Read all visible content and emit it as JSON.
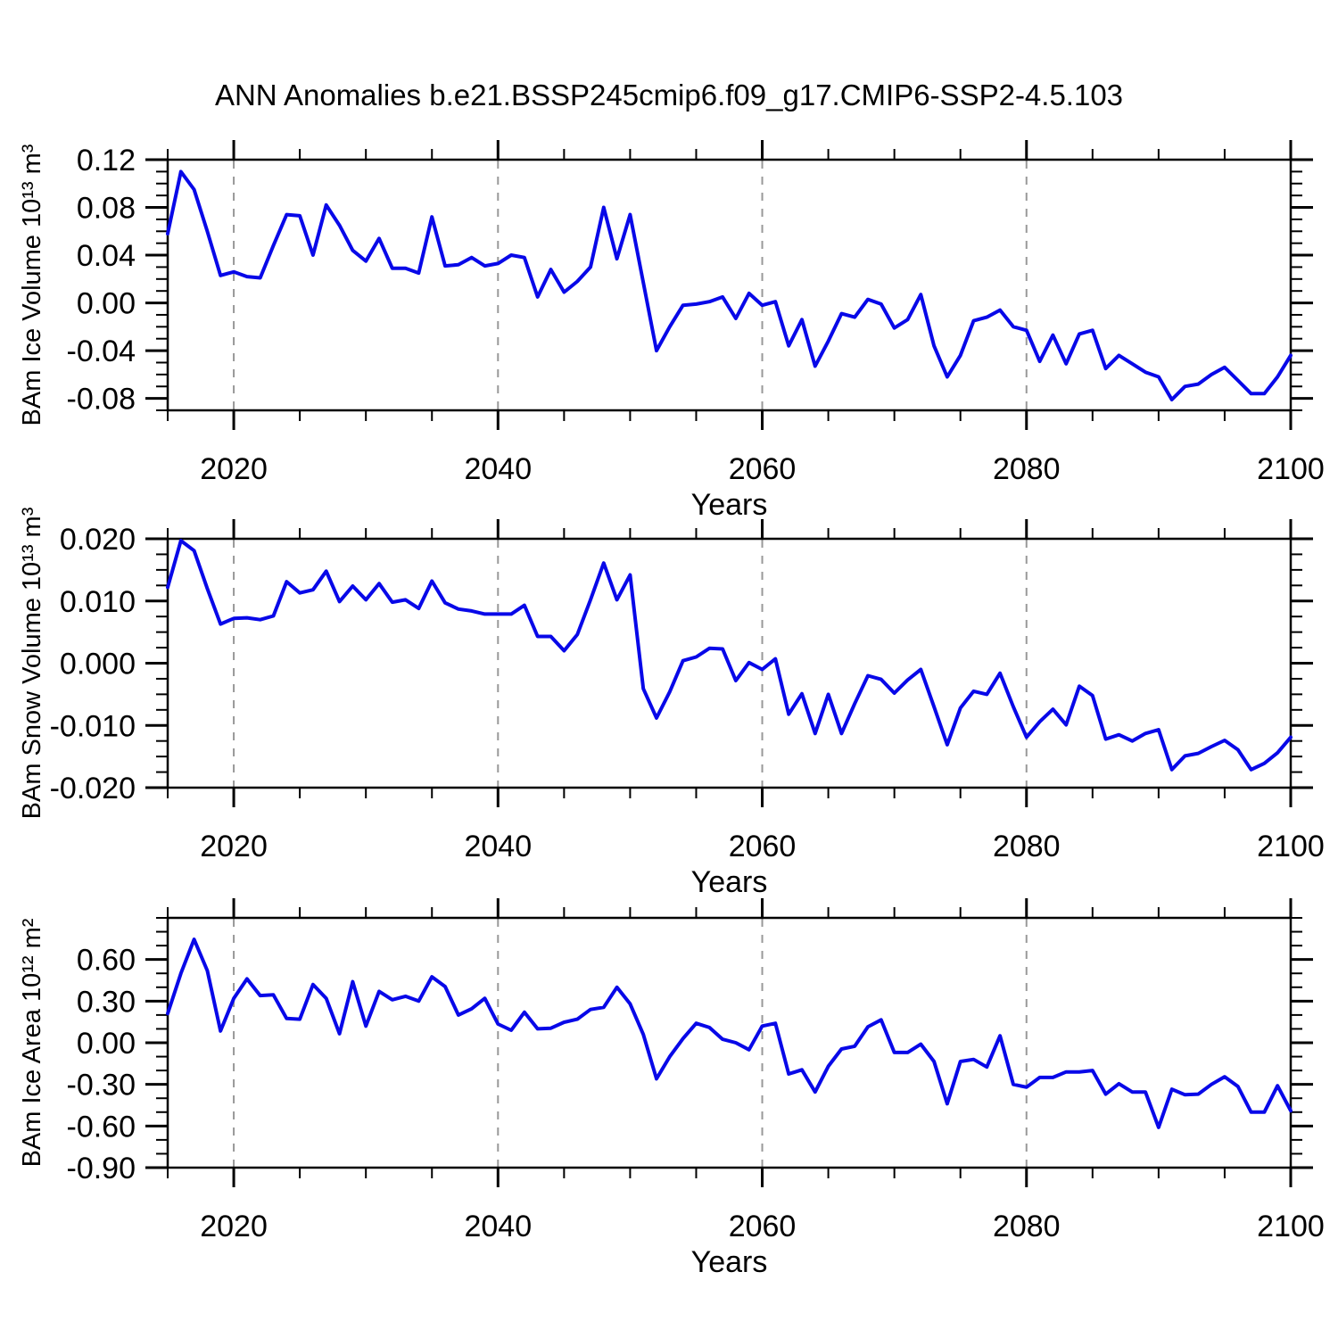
{
  "title": "ANN Anomalies b.e21.BSSP245cmip6.f09_g17.CMIP6-SSP2-4.5.103",
  "styles": {
    "line_color": "#0808E8",
    "grid_color": "#999999",
    "frame_color": "#000000",
    "text_color": "#000000"
  },
  "chart_data": [
    {
      "name": "bam-ice-volume",
      "type": "line",
      "ylabel": "BAm Ice Volume 10¹³ m³",
      "xlabel": "Years",
      "x_start": 2015,
      "x_end": 2100,
      "x_step": 1,
      "xticks": [
        2020,
        2040,
        2060,
        2080,
        2100
      ],
      "x_minor_step": 5,
      "grid_x": [
        2020,
        2040,
        2060,
        2080
      ],
      "ylim": [
        -0.09,
        0.12
      ],
      "yticks": [
        0.12,
        0.08,
        0.04,
        0,
        -0.04,
        -0.08
      ],
      "y_minor_step": 0.01,
      "y_decimals": 2,
      "legend": "none",
      "grid": "dashed-vertical",
      "values": [
        0.058,
        0.11,
        0.095,
        0.06,
        0.023,
        0.026,
        0.022,
        0.021,
        0.048,
        0.074,
        0.073,
        0.04,
        0.082,
        0.065,
        0.044,
        0.035,
        0.054,
        0.029,
        0.029,
        0.025,
        0.072,
        0.031,
        0.032,
        0.038,
        0.031,
        0.033,
        0.04,
        0.038,
        0.005,
        0.028,
        0.009,
        0.018,
        0.03,
        0.08,
        0.037,
        0.074,
        0.017,
        -0.04,
        -0.02,
        -0.002,
        -0.001,
        0.001,
        0.005,
        -0.013,
        0.008,
        -0.002,
        0.001,
        -0.036,
        -0.014,
        -0.053,
        -0.032,
        -0.009,
        -0.012,
        0.003,
        -0.001,
        -0.021,
        -0.014,
        0.007,
        -0.036,
        -0.062,
        -0.044,
        -0.015,
        -0.012,
        -0.006,
        -0.02,
        -0.023,
        -0.049,
        -0.027,
        -0.051,
        -0.026,
        -0.023,
        -0.055,
        -0.044,
        -0.051,
        -0.058,
        -0.062,
        -0.081,
        -0.07,
        -0.068,
        -0.06,
        -0.054,
        -0.065,
        -0.076,
        -0.076,
        -0.062,
        -0.044
      ]
    },
    {
      "name": "bam-snow-volume",
      "type": "line",
      "ylabel": "BAm Snow Volume 10¹³ m³",
      "xlabel": "Years",
      "x_start": 2015,
      "x_end": 2100,
      "x_step": 1,
      "xticks": [
        2020,
        2040,
        2060,
        2080,
        2100
      ],
      "x_minor_step": 5,
      "grid_x": [
        2020,
        2040,
        2060,
        2080
      ],
      "ylim": [
        -0.02,
        0.02
      ],
      "yticks": [
        0.02,
        0.01,
        0,
        -0.01,
        -0.02
      ],
      "y_minor_step": 0.0025,
      "y_decimals": 3,
      "legend": "none",
      "grid": "dashed-vertical",
      "values": [
        0.0122,
        0.0197,
        0.0181,
        0.012,
        0.0063,
        0.0072,
        0.0073,
        0.007,
        0.0076,
        0.0131,
        0.0113,
        0.0118,
        0.0148,
        0.0099,
        0.0124,
        0.0102,
        0.0128,
        0.0098,
        0.0102,
        0.0088,
        0.0132,
        0.0097,
        0.0087,
        0.0084,
        0.0079,
        0.0079,
        0.0079,
        0.0093,
        0.0043,
        0.0043,
        0.002,
        0.0046,
        0.0102,
        0.0161,
        0.0102,
        0.0142,
        -0.0041,
        -0.0088,
        -0.0046,
        0.0004,
        0.001,
        0.0024,
        0.0023,
        -0.0028,
        0.0001,
        -0.001,
        0.0007,
        -0.0082,
        -0.0049,
        -0.0113,
        -0.005,
        -0.0113,
        -0.0065,
        -0.002,
        -0.0026,
        -0.0048,
        -0.0027,
        -0.001,
        -0.007,
        -0.0131,
        -0.0072,
        -0.0045,
        -0.005,
        -0.0016,
        -0.007,
        -0.0119,
        -0.0094,
        -0.0074,
        -0.0099,
        -0.0037,
        -0.0052,
        -0.0122,
        -0.0115,
        -0.0125,
        -0.0113,
        -0.0107,
        -0.0171,
        -0.0149,
        -0.0145,
        -0.0134,
        -0.0124,
        -0.0139,
        -0.0171,
        -0.0161,
        -0.0144,
        -0.0119
      ]
    },
    {
      "name": "bam-ice-area",
      "type": "line",
      "ylabel": "BAm Ice Area 10¹² m²",
      "xlabel": "Years",
      "x_start": 2015,
      "x_end": 2100,
      "x_step": 1,
      "xticks": [
        2020,
        2040,
        2060,
        2080,
        2100
      ],
      "x_minor_step": 5,
      "grid_x": [
        2020,
        2040,
        2060,
        2080
      ],
      "ylim": [
        -0.9,
        0.9
      ],
      "yticks": [
        0.6,
        0.3,
        0,
        -0.3,
        -0.6,
        -0.9
      ],
      "y_minor_step": 0.1,
      "y_decimals": 2,
      "legend": "none",
      "grid": "dashed-vertical",
      "values": [
        0.21,
        0.5,
        0.745,
        0.52,
        0.085,
        0.32,
        0.46,
        0.34,
        0.345,
        0.175,
        0.17,
        0.42,
        0.32,
        0.065,
        0.44,
        0.12,
        0.37,
        0.31,
        0.335,
        0.3,
        0.475,
        0.405,
        0.2,
        0.245,
        0.32,
        0.135,
        0.09,
        0.22,
        0.1,
        0.105,
        0.148,
        0.17,
        0.24,
        0.255,
        0.4,
        0.28,
        0.06,
        -0.26,
        -0.1,
        0.03,
        0.14,
        0.11,
        0.025,
        0.0,
        -0.05,
        0.12,
        0.14,
        -0.225,
        -0.195,
        -0.355,
        -0.17,
        -0.045,
        -0.025,
        0.115,
        0.165,
        -0.07,
        -0.07,
        -0.01,
        -0.135,
        -0.44,
        -0.135,
        -0.12,
        -0.175,
        0.05,
        -0.3,
        -0.32,
        -0.25,
        -0.25,
        -0.21,
        -0.21,
        -0.2,
        -0.37,
        -0.295,
        -0.355,
        -0.355,
        -0.61,
        -0.335,
        -0.375,
        -0.37,
        -0.3,
        -0.245,
        -0.315,
        -0.5,
        -0.5,
        -0.31,
        -0.49
      ]
    }
  ]
}
